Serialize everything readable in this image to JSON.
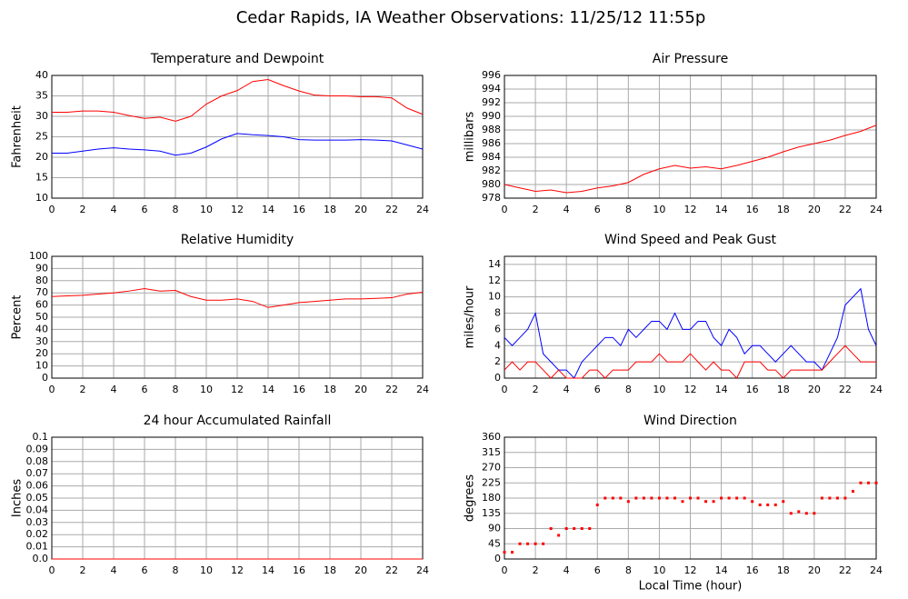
{
  "title": "Cedar Rapids, IA Weather Observations: 11/25/12 11:55p",
  "chart_data": [
    {
      "type": "line",
      "title": "Temperature and Dewpoint",
      "ylabel": "Fahrenheit",
      "x": [
        0,
        1,
        2,
        3,
        4,
        5,
        6,
        7,
        8,
        9,
        10,
        11,
        12,
        13,
        14,
        15,
        16,
        17,
        18,
        19,
        20,
        21,
        22,
        23,
        24
      ],
      "series": [
        {
          "color": "#ff0000",
          "values": [
            31,
            31,
            31.3,
            31.3,
            31,
            30.2,
            29.5,
            29.8,
            28.8,
            30,
            33,
            35,
            36.3,
            38.5,
            39,
            37.5,
            36.2,
            35.2,
            35,
            35,
            34.8,
            34.8,
            34.5,
            32,
            30.5
          ]
        },
        {
          "color": "#0000ff",
          "values": [
            21,
            21,
            21.5,
            22,
            22.3,
            22,
            21.8,
            21.5,
            20.5,
            21,
            22.5,
            24.5,
            25.8,
            25.5,
            25.3,
            25,
            24.3,
            24.2,
            24.2,
            24.2,
            24.3,
            24.2,
            24,
            23,
            22
          ]
        }
      ],
      "xlim": [
        0,
        24
      ],
      "xticks": [
        0,
        2,
        4,
        6,
        8,
        10,
        12,
        14,
        16,
        18,
        20,
        22,
        24
      ],
      "ylim": [
        10,
        40
      ],
      "yticks": [
        10,
        15,
        20,
        25,
        30,
        35,
        40
      ],
      "grid": true
    },
    {
      "type": "line",
      "title": "Air Pressure",
      "ylabel": "millibars",
      "x": [
        0,
        1,
        2,
        3,
        4,
        5,
        6,
        7,
        8,
        9,
        10,
        11,
        12,
        13,
        14,
        15,
        16,
        17,
        18,
        19,
        20,
        21,
        22,
        23,
        24
      ],
      "series": [
        {
          "color": "#ff0000",
          "values": [
            980,
            979.5,
            979,
            979.2,
            978.8,
            979,
            979.5,
            979.8,
            980.3,
            981.5,
            982.3,
            982.8,
            982.4,
            982.6,
            982.3,
            982.8,
            983.4,
            984,
            984.8,
            985.5,
            986,
            986.5,
            987.2,
            987.8,
            988.7
          ]
        }
      ],
      "xlim": [
        0,
        24
      ],
      "xticks": [
        0,
        2,
        4,
        6,
        8,
        10,
        12,
        14,
        16,
        18,
        20,
        22,
        24
      ],
      "ylim": [
        978,
        996
      ],
      "yticks": [
        978,
        980,
        982,
        984,
        986,
        988,
        990,
        992,
        994,
        996
      ],
      "grid": true
    },
    {
      "type": "line",
      "title": "Relative Humidity",
      "ylabel": "Percent",
      "x": [
        0,
        1,
        2,
        3,
        4,
        5,
        6,
        7,
        8,
        9,
        10,
        11,
        12,
        13,
        14,
        15,
        16,
        17,
        18,
        19,
        20,
        21,
        22,
        23,
        24
      ],
      "series": [
        {
          "color": "#ff0000",
          "values": [
            67,
            67.5,
            68,
            69,
            70,
            71.5,
            73.5,
            71.5,
            72,
            67,
            64,
            64,
            65,
            63,
            58,
            60,
            62,
            63,
            64,
            65,
            65,
            65.5,
            66,
            69,
            70.5
          ]
        }
      ],
      "xlim": [
        0,
        24
      ],
      "xticks": [
        0,
        2,
        4,
        6,
        8,
        10,
        12,
        14,
        16,
        18,
        20,
        22,
        24
      ],
      "ylim": [
        0,
        100
      ],
      "yticks": [
        0,
        10,
        20,
        30,
        40,
        50,
        60,
        70,
        80,
        90,
        100
      ],
      "grid": true
    },
    {
      "type": "line",
      "title": "Wind Speed and Peak Gust",
      "ylabel": "miles/hour",
      "x": [
        0,
        0.5,
        1,
        1.5,
        2,
        2.5,
        3,
        3.5,
        4,
        4.5,
        5,
        5.5,
        6,
        6.5,
        7,
        7.5,
        8,
        8.5,
        9,
        9.5,
        10,
        10.5,
        11,
        11.5,
        12,
        12.5,
        13,
        13.5,
        14,
        14.5,
        15,
        15.5,
        16,
        16.5,
        17,
        17.5,
        18,
        18.5,
        19,
        19.5,
        20,
        20.5,
        21,
        21.5,
        22,
        22.5,
        23,
        23.5,
        24
      ],
      "series": [
        {
          "color": "#0000ff",
          "values": [
            5,
            4,
            5,
            6,
            8,
            3,
            2,
            1,
            1,
            0,
            2,
            3,
            4,
            5,
            5,
            4,
            6,
            5,
            6,
            7,
            7,
            6,
            8,
            6,
            6,
            7,
            7,
            5,
            4,
            6,
            5,
            3,
            4,
            4,
            3,
            2,
            3,
            4,
            3,
            2,
            2,
            1,
            3,
            5,
            9,
            10,
            11,
            6,
            4
          ]
        },
        {
          "color": "#ff0000",
          "values": [
            1,
            2,
            1,
            2,
            2,
            1,
            0,
            1,
            0,
            0,
            0,
            1,
            1,
            0,
            1,
            1,
            1,
            2,
            2,
            2,
            3,
            2,
            2,
            2,
            3,
            2,
            1,
            2,
            1,
            1,
            0,
            2,
            2,
            2,
            1,
            1,
            0,
            1,
            1,
            1,
            1,
            1,
            2,
            3,
            4,
            3,
            2,
            2,
            2
          ]
        }
      ],
      "xlim": [
        0,
        24
      ],
      "xticks": [
        0,
        2,
        4,
        6,
        8,
        10,
        12,
        14,
        16,
        18,
        20,
        22,
        24
      ],
      "ylim": [
        0,
        15
      ],
      "yticks": [
        0,
        2,
        4,
        6,
        8,
        10,
        12,
        14
      ],
      "grid": true
    },
    {
      "type": "line",
      "title": "24 hour Accumulated Rainfall",
      "ylabel": "Inches",
      "x": [
        0,
        1,
        2,
        3,
        4,
        5,
        6,
        7,
        8,
        9,
        10,
        11,
        12,
        13,
        14,
        15,
        16,
        17,
        18,
        19,
        20,
        21,
        22,
        23,
        24
      ],
      "series": [
        {
          "color": "#ff0000",
          "values": [
            0,
            0,
            0,
            0,
            0,
            0,
            0,
            0,
            0,
            0,
            0,
            0,
            0,
            0,
            0,
            0,
            0,
            0,
            0,
            0,
            0,
            0,
            0,
            0,
            0
          ]
        }
      ],
      "xlim": [
        0,
        24
      ],
      "xticks": [
        0,
        2,
        4,
        6,
        8,
        10,
        12,
        14,
        16,
        18,
        20,
        22,
        24
      ],
      "ylim": [
        0,
        0.1
      ],
      "yticks": [
        {
          "value": 0,
          "label": "0.0"
        },
        0.01,
        0.02,
        0.03,
        0.04,
        0.05,
        0.06,
        0.07,
        0.08,
        0.09,
        0.1
      ],
      "grid": true
    },
    {
      "type": "scatter",
      "title": "Wind Direction",
      "ylabel": "degrees",
      "xlabel": "Local Time (hour)",
      "x": [
        0,
        0.5,
        1,
        1.5,
        2,
        2.5,
        3,
        3.5,
        4,
        4.5,
        5,
        5.5,
        6,
        6.5,
        7,
        7.5,
        8,
        8.5,
        9,
        9.5,
        10,
        10.5,
        11,
        11.5,
        12,
        12.5,
        13,
        13.5,
        14,
        14.5,
        15,
        15.5,
        16,
        16.5,
        17,
        17.5,
        18,
        18.5,
        19,
        19.5,
        20,
        20.5,
        21,
        21.5,
        22,
        22.5,
        23,
        23.5,
        24
      ],
      "series": [
        {
          "color": "#ff0000",
          "values": [
            20,
            20,
            45,
            45,
            45,
            45,
            90,
            70,
            90,
            90,
            90,
            90,
            160,
            180,
            180,
            180,
            170,
            180,
            180,
            180,
            180,
            180,
            180,
            170,
            180,
            180,
            170,
            170,
            180,
            180,
            180,
            180,
            170,
            160,
            160,
            160,
            170,
            135,
            140,
            135,
            135,
            180,
            180,
            180,
            180,
            200,
            225,
            225,
            225
          ]
        }
      ],
      "xlim": [
        0,
        24
      ],
      "xticks": [
        0,
        2,
        4,
        6,
        8,
        10,
        12,
        14,
        16,
        18,
        20,
        22,
        24
      ],
      "ylim": [
        0,
        360
      ],
      "yticks": [
        0,
        45,
        90,
        135,
        180,
        225,
        270,
        315,
        360
      ],
      "grid": true
    }
  ]
}
